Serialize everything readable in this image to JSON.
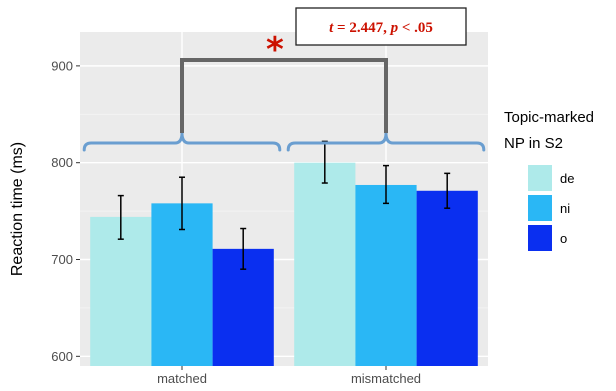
{
  "chart_data": {
    "type": "bar",
    "categories": [
      "matched",
      "mismatched"
    ],
    "series": [
      {
        "name": "de",
        "color": "#aeeaea",
        "values": [
          744,
          800
        ],
        "error_low": [
          721,
          779
        ],
        "error_high": [
          766,
          822
        ]
      },
      {
        "name": "ni",
        "color": "#2ab7f5",
        "values": [
          758,
          777
        ],
        "error_low": [
          731,
          758
        ],
        "error_high": [
          785,
          797
        ]
      },
      {
        "name": "o",
        "color": "#0a2ff0",
        "values": [
          711,
          771
        ],
        "error_low": [
          690,
          753
        ],
        "error_high": [
          732,
          789
        ]
      }
    ],
    "ylabel": "Reaction time (ms)",
    "ylim": [
      590,
      935
    ],
    "yticks": [
      600,
      700,
      800,
      900
    ],
    "legend_title": [
      "Topic-marked",
      "NP in S2"
    ],
    "legend_position": "right",
    "grid": true,
    "background": "#ebebeb",
    "annotation": {
      "t_symbol": "t",
      "t_rest": " = 2.447, ",
      "p_symbol": "p",
      "p_rest": " < .05",
      "star": "*",
      "color": "#cc1100",
      "bracket_color": "#6a9ed0",
      "connector_color": "#666666"
    }
  }
}
